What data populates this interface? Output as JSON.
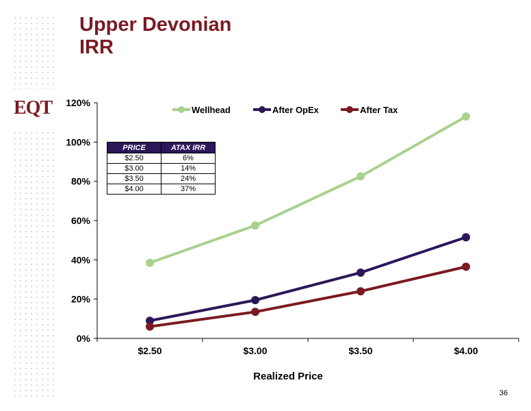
{
  "slide": {
    "title_line1": "Upper Devonian",
    "title_line2": "IRR",
    "logo_text": "EQT",
    "page_number": "36"
  },
  "colors": {
    "title": "#7b1a22",
    "wellhead": "#a9d18e",
    "after_opex": "#2b1758",
    "after_tax": "#7b1a22",
    "table_header": "#2b1758"
  },
  "table": {
    "headers": [
      "PRICE",
      "ATAX IRR"
    ],
    "rows": [
      [
        "$2.50",
        "6%"
      ],
      [
        "$3.00",
        "14%"
      ],
      [
        "$3.50",
        "24%"
      ],
      [
        "$4.00",
        "37%"
      ]
    ]
  },
  "chart_data": {
    "type": "line",
    "title": "",
    "xlabel": "Realized Price",
    "ylabel": "",
    "categories": [
      "$2.50",
      "$3.00",
      "$3.50",
      "$4.00"
    ],
    "y_ticks": [
      "0%",
      "20%",
      "40%",
      "60%",
      "80%",
      "100%",
      "120%"
    ],
    "ylim": [
      0,
      120
    ],
    "legend_position": "top",
    "grid": false,
    "series": [
      {
        "name": "Wellhead",
        "values": [
          38.5,
          57.5,
          82.5,
          113
        ],
        "color": "#a9d18e"
      },
      {
        "name": "After OpEx",
        "values": [
          9,
          19.5,
          33.5,
          51.5
        ],
        "color": "#2b1758"
      },
      {
        "name": "After Tax",
        "values": [
          6,
          13.5,
          24,
          36.5
        ],
        "color": "#7b1a22"
      }
    ]
  }
}
